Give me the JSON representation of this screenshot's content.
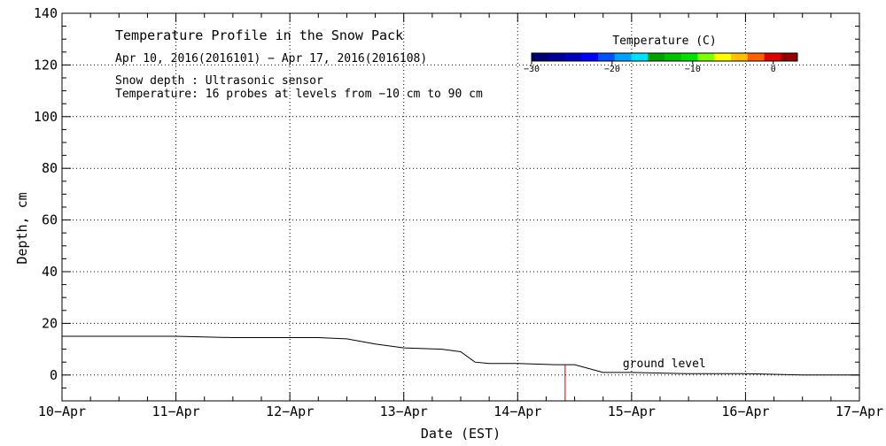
{
  "chart_data": {
    "type": "line",
    "title": "Temperature Profile in the Snow Pack",
    "subtitle": "Apr 10, 2016(2016101) − Apr 17, 2016(2016108)",
    "annotations": [
      "Snow depth : Ultrasonic sensor",
      "Temperature: 16 probes at levels from −10 cm to 90 cm"
    ],
    "xlabel": "Date (EST)",
    "ylabel": "Depth, cm",
    "xlim": [
      "2016-04-10",
      "2016-04-17"
    ],
    "ylim": [
      -10,
      140
    ],
    "x_tick_labels": [
      "10−Apr",
      "11−Apr",
      "12−Apr",
      "13−Apr",
      "14−Apr",
      "15−Apr",
      "16−Apr",
      "17−Apr"
    ],
    "y_ticks": [
      0,
      20,
      40,
      60,
      80,
      100,
      120,
      140
    ],
    "grid": true,
    "series": [
      {
        "name": "Snow depth",
        "color": "#000000",
        "x": [
          "2016-04-10 00:00",
          "2016-04-10 12:00",
          "2016-04-11 00:00",
          "2016-04-11 12:00",
          "2016-04-12 00:00",
          "2016-04-12 06:00",
          "2016-04-12 12:00",
          "2016-04-12 18:00",
          "2016-04-13 00:00",
          "2016-04-13 08:00",
          "2016-04-13 12:00",
          "2016-04-13 15:00",
          "2016-04-13 18:00",
          "2016-04-14 00:00",
          "2016-04-14 08:00",
          "2016-04-14 12:00",
          "2016-04-14 18:00",
          "2016-04-15 00:00",
          "2016-04-15 12:00",
          "2016-04-16 00:00",
          "2016-04-16 12:00",
          "2016-04-17 00:00"
        ],
        "values": [
          15,
          15,
          15,
          14.5,
          14.5,
          14.5,
          14,
          12,
          10.5,
          10,
          9,
          5,
          4.5,
          4.5,
          4,
          4,
          1,
          1,
          0.5,
          0.5,
          0,
          0
        ]
      }
    ],
    "markers": [
      {
        "x": "2016-04-14 10:00",
        "from": -10,
        "to": 4,
        "color": "#c00000"
      }
    ],
    "text_labels": [
      {
        "text": "ground level",
        "x": "2016-04-15 00:00",
        "y": 3
      }
    ],
    "colorbar": {
      "title": "Temperature (C)",
      "ticks": [
        -30,
        -20,
        -10,
        0
      ],
      "tick_labels": [
        "−30",
        "−20",
        "−10",
        "0"
      ],
      "range": [
        -30,
        3
      ],
      "colors": [
        "#00006e",
        "#000090",
        "#0000c0",
        "#0000ff",
        "#0050ff",
        "#00a0ff",
        "#00e0ff",
        "#00a000",
        "#00c000",
        "#00e000",
        "#80ff00",
        "#ffff00",
        "#ffc000",
        "#ff6000",
        "#e00000",
        "#900000"
      ]
    }
  }
}
